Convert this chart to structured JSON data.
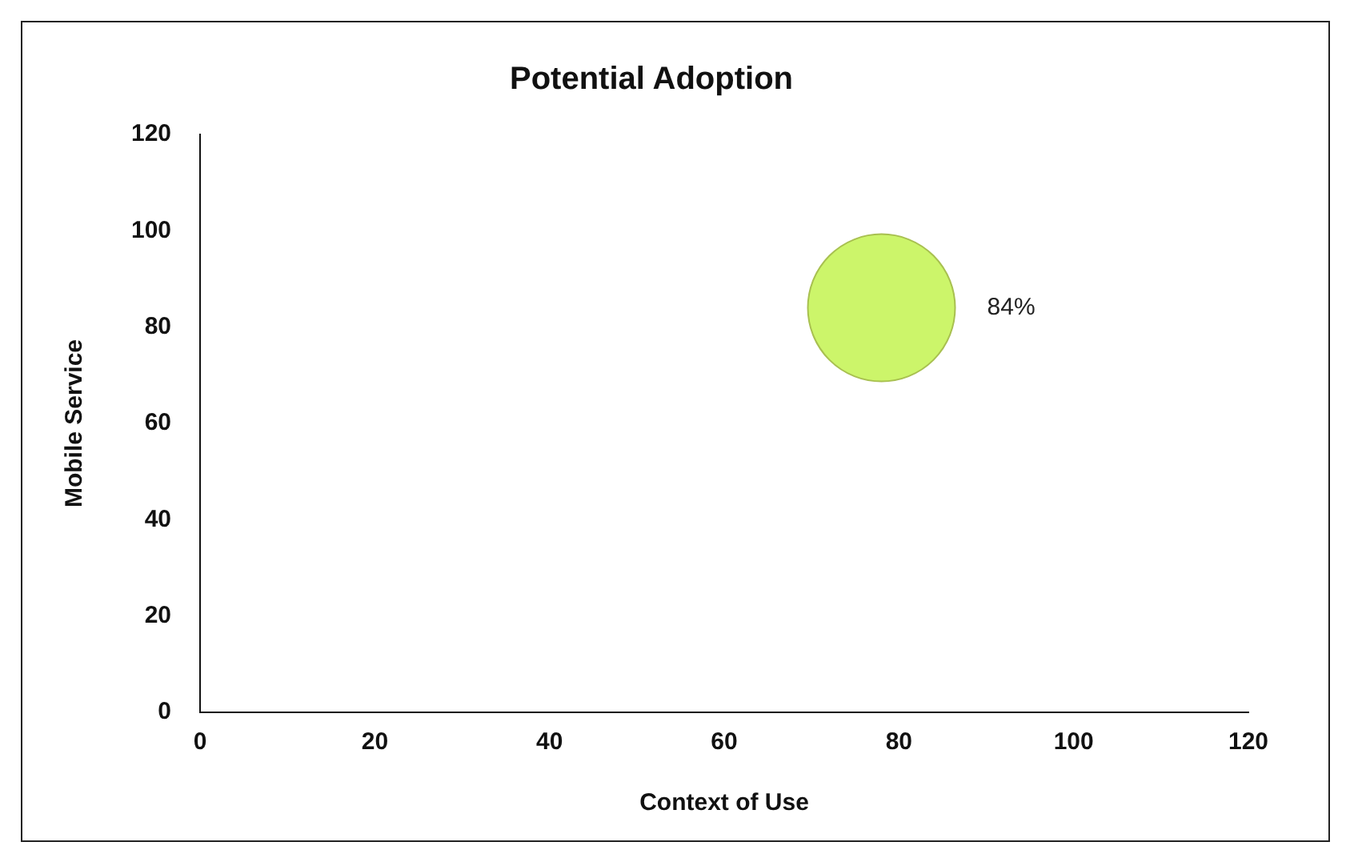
{
  "chart_data": {
    "type": "bubble",
    "title": "Potential Adoption",
    "xlabel": "Context of Use",
    "ylabel": "Mobile Service",
    "series": [
      {
        "color": "#ccf56a",
        "x": [
          78
        ],
        "values": [
          84
        ],
        "sizes": [
          1
        ],
        "value_labels": [
          "84%"
        ]
      }
    ],
    "xlim": [
      0,
      120
    ],
    "xticks": [
      0,
      20,
      40,
      60,
      80,
      100,
      120
    ],
    "ylim": [
      0,
      120
    ],
    "yticks": [
      0,
      20,
      40,
      60,
      80,
      100,
      120
    ],
    "grid": false,
    "legend": false
  }
}
